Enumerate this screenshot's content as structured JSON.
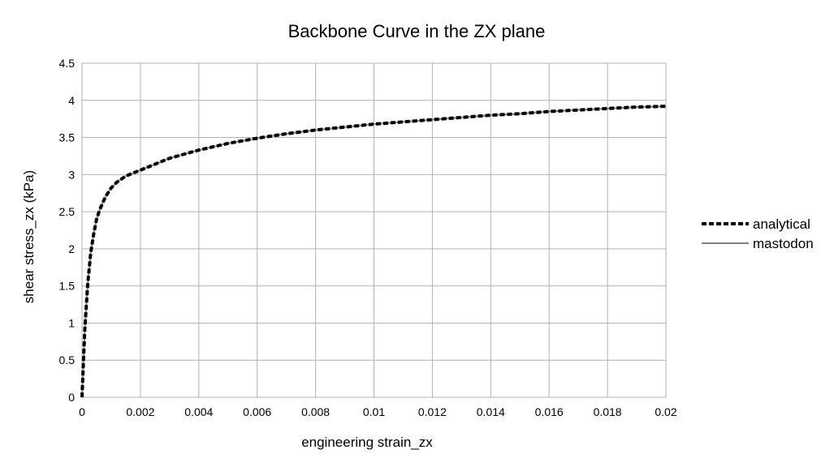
{
  "chart_data": {
    "type": "line",
    "title": "Backbone Curve in the ZX plane",
    "xlabel": "engineering strain_zx",
    "ylabel": "shear stress_zx (kPa)",
    "xlim": [
      0,
      0.02
    ],
    "ylim": [
      0,
      4.5
    ],
    "x_ticks": [
      "0",
      "0.002",
      "0.004",
      "0.006",
      "0.008",
      "0.01",
      "0.012",
      "0.014",
      "0.016",
      "0.018",
      "0.02"
    ],
    "y_ticks": [
      "0",
      "0.5",
      "1",
      "1.5",
      "2",
      "2.5",
      "3",
      "3.5",
      "4",
      "4.5"
    ],
    "grid": true,
    "legend_position": "right",
    "series": [
      {
        "name": "analytical",
        "style": "dashed",
        "color": "#000000",
        "x": [
          0,
          5e-05,
          0.0001,
          0.0002,
          0.0003,
          0.0004,
          0.0005,
          0.0006,
          0.0008,
          0.001,
          0.0012,
          0.0015,
          0.002,
          0.0025,
          0.003,
          0.004,
          0.005,
          0.006,
          0.007,
          0.008,
          0.009,
          0.01,
          0.011,
          0.012,
          0.013,
          0.014,
          0.015,
          0.016,
          0.017,
          0.018,
          0.019,
          0.02
        ],
        "y": [
          0,
          0.5,
          0.95,
          1.55,
          1.95,
          2.2,
          2.4,
          2.52,
          2.7,
          2.82,
          2.9,
          2.98,
          3.06,
          3.14,
          3.22,
          3.33,
          3.42,
          3.49,
          3.55,
          3.6,
          3.64,
          3.68,
          3.71,
          3.74,
          3.77,
          3.8,
          3.82,
          3.85,
          3.87,
          3.89,
          3.91,
          3.92
        ]
      },
      {
        "name": "mastodon",
        "style": "solid",
        "color": "#808080",
        "x": [
          0,
          5e-05,
          0.0001,
          0.0002,
          0.0003,
          0.0004,
          0.0005,
          0.0006,
          0.0008,
          0.001,
          0.0012,
          0.0015,
          0.002,
          0.0025,
          0.003,
          0.004,
          0.005,
          0.006,
          0.007,
          0.008,
          0.009,
          0.01,
          0.011,
          0.012,
          0.013,
          0.014,
          0.015,
          0.016,
          0.017,
          0.018,
          0.019,
          0.02
        ],
        "y": [
          0,
          0.5,
          0.95,
          1.55,
          1.95,
          2.2,
          2.4,
          2.52,
          2.7,
          2.82,
          2.9,
          2.98,
          3.06,
          3.14,
          3.22,
          3.33,
          3.42,
          3.49,
          3.55,
          3.6,
          3.64,
          3.68,
          3.71,
          3.74,
          3.77,
          3.8,
          3.82,
          3.85,
          3.87,
          3.89,
          3.91,
          3.92
        ]
      }
    ]
  }
}
